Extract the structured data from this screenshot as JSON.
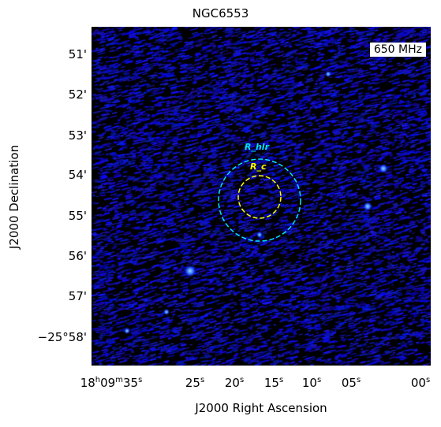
{
  "title": "NGC6553",
  "frequency_label": "650 MHz",
  "axes": {
    "xlabel": "J2000 Right Ascension",
    "ylabel": "J2000 Declination"
  },
  "y_ticks": [
    "51'",
    "52'",
    "53'",
    "54'",
    "55'",
    "56'",
    "57'",
    "−25°58'"
  ],
  "x_ticks": [
    {
      "h": "18",
      "hs": "h",
      "m": "09",
      "ms": "m",
      "s": "35",
      "ss": "s"
    },
    {
      "s": "25",
      "ss": "s"
    },
    {
      "s": "20",
      "ss": "s"
    },
    {
      "s": "15",
      "ss": "s"
    },
    {
      "s": "10",
      "ss": "s"
    },
    {
      "s": "05",
      "ss": "s"
    },
    {
      "s": "00",
      "ss": "s"
    }
  ],
  "circles": [
    {
      "label": "R_hlr",
      "color": "#00e5ff"
    },
    {
      "label": "R_c",
      "color": "#ffff00"
    }
  ],
  "colors": {
    "background": "#000000",
    "emission": "#1a1aff"
  }
}
